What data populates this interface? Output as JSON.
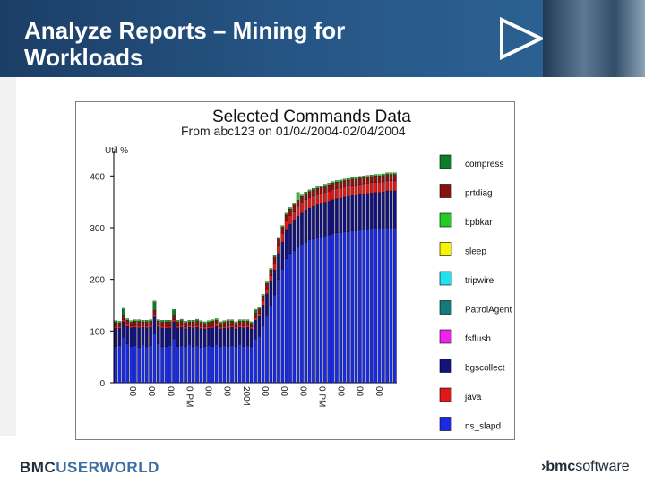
{
  "slide": {
    "title": "Analyze Reports – Mining for\nWorkloads",
    "footer_brand_bold": "BMC",
    "footer_brand_light": "USERWORLD",
    "corporate_logo_bmc": "bmc",
    "corporate_logo_software": "software",
    "header_accent": "#1f4a78"
  },
  "chart_data": {
    "type": "bar",
    "stacked": true,
    "title": "Selected Commands Data",
    "subtitle": "From abc123 on 01/04/2004-02/04/2004",
    "ylabel": "Util %",
    "ylim": [
      0,
      430
    ],
    "yticks": [
      0,
      100,
      200,
      300,
      400
    ],
    "xtick_labels": [
      "00",
      "00",
      "00",
      "0 PM",
      "00",
      "00",
      "2004",
      "00",
      "00",
      "00",
      "0 PM",
      "00",
      "00",
      "00"
    ],
    "legend_position": "right",
    "series": [
      {
        "name": "compress",
        "color": "#0f7a2a"
      },
      {
        "name": "prtdiag",
        "color": "#8b1010"
      },
      {
        "name": "bpbkar",
        "color": "#22cc22"
      },
      {
        "name": "sleep",
        "color": "#f5f500"
      },
      {
        "name": "tripwire",
        "color": "#22e0ee"
      },
      {
        "name": "PatrolAgent",
        "color": "#147a7a"
      },
      {
        "name": "fsflush",
        "color": "#ee22ee"
      },
      {
        "name": "bgscollect",
        "color": "#12127a"
      },
      {
        "name": "java",
        "color": "#e01818"
      },
      {
        "name": "ns_slapd",
        "color": "#1a2ae0"
      }
    ],
    "stack_values": {
      "ns_slapd": [
        70,
        72,
        88,
        75,
        70,
        72,
        68,
        74,
        70,
        72,
        95,
        75,
        70,
        70,
        72,
        85,
        70,
        72,
        70,
        74,
        70,
        72,
        68,
        70,
        72,
        70,
        74,
        70,
        72,
        70,
        72,
        70,
        74,
        70,
        72,
        70,
        85,
        90,
        110,
        130,
        150,
        170,
        200,
        220,
        240,
        250,
        255,
        262,
        268,
        272,
        276,
        278,
        280,
        282,
        284,
        286,
        288,
        290,
        290,
        292,
        292,
        294,
        294,
        295,
        296,
        296,
        297,
        298,
        298,
        298,
        300,
        300,
        300
      ],
      "bgscollect": [
        35,
        33,
        30,
        34,
        36,
        35,
        38,
        33,
        36,
        35,
        32,
        33,
        36,
        35,
        34,
        33,
        36,
        35,
        34,
        33,
        36,
        35,
        37,
        34,
        33,
        36,
        35,
        34,
        33,
        36,
        35,
        34,
        33,
        36,
        35,
        34,
        36,
        38,
        40,
        42,
        45,
        48,
        50,
        52,
        55,
        56,
        58,
        60,
        60,
        62,
        62,
        63,
        64,
        64,
        65,
        65,
        66,
        66,
        67,
        67,
        68,
        68,
        68,
        69,
        69,
        70,
        70,
        70,
        70,
        71,
        71,
        71,
        71
      ],
      "java": [
        4,
        4,
        4,
        4,
        4,
        4,
        4,
        4,
        4,
        4,
        4,
        4,
        4,
        4,
        4,
        4,
        4,
        4,
        4,
        4,
        4,
        4,
        4,
        4,
        4,
        4,
        4,
        4,
        4,
        4,
        4,
        4,
        4,
        4,
        4,
        4,
        5,
        6,
        8,
        10,
        12,
        14,
        16,
        17,
        18,
        18,
        19,
        19,
        20,
        20,
        20,
        20,
        20,
        20,
        20,
        20,
        20,
        20,
        20,
        20,
        20,
        20,
        20,
        20,
        20,
        20,
        20,
        20,
        20,
        20,
        20,
        20,
        20
      ],
      "prtdiag": [
        8,
        7,
        9,
        8,
        7,
        8,
        9,
        7,
        8,
        8,
        9,
        7,
        8,
        9,
        8,
        7,
        8,
        9,
        8,
        7,
        8,
        9,
        8,
        7,
        8,
        9,
        8,
        7,
        8,
        9,
        8,
        7,
        8,
        9,
        8,
        7,
        8,
        9,
        10,
        10,
        11,
        11,
        12,
        12,
        12,
        12,
        12,
        12,
        12,
        12,
        12,
        12,
        12,
        12,
        12,
        12,
        12,
        12,
        12,
        12,
        12,
        12,
        12,
        12,
        12,
        12,
        12,
        12,
        12,
        12,
        12,
        12,
        12
      ],
      "compress": [
        0,
        0,
        10,
        0,
        0,
        0,
        0,
        0,
        0,
        0,
        15,
        0,
        0,
        0,
        0,
        10,
        0,
        0,
        0,
        0,
        0,
        0,
        0,
        0,
        0,
        0,
        0,
        0,
        0,
        0,
        0,
        0,
        0,
        0,
        0,
        0,
        5,
        0,
        0,
        0,
        0,
        0,
        0,
        0,
        0,
        0,
        0,
        0,
        0,
        0,
        0,
        0,
        0,
        0,
        0,
        0,
        0,
        0,
        0,
        0,
        0,
        0,
        0,
        0,
        0,
        0,
        0,
        0,
        0,
        0,
        0,
        0,
        0
      ],
      "bpbkar": [
        3,
        3,
        3,
        3,
        3,
        3,
        3,
        3,
        3,
        3,
        3,
        3,
        3,
        3,
        3,
        3,
        3,
        3,
        3,
        3,
        3,
        3,
        3,
        3,
        3,
        3,
        3,
        3,
        3,
        3,
        3,
        3,
        3,
        3,
        3,
        3,
        3,
        3,
        3,
        3,
        3,
        3,
        3,
        3,
        3,
        3,
        3,
        15,
        3,
        3,
        3,
        3,
        3,
        3,
        3,
        3,
        3,
        3,
        3,
        3,
        3,
        3,
        3,
        3,
        3,
        3,
        3,
        3,
        3,
        3,
        3,
        3,
        3
      ]
    }
  }
}
